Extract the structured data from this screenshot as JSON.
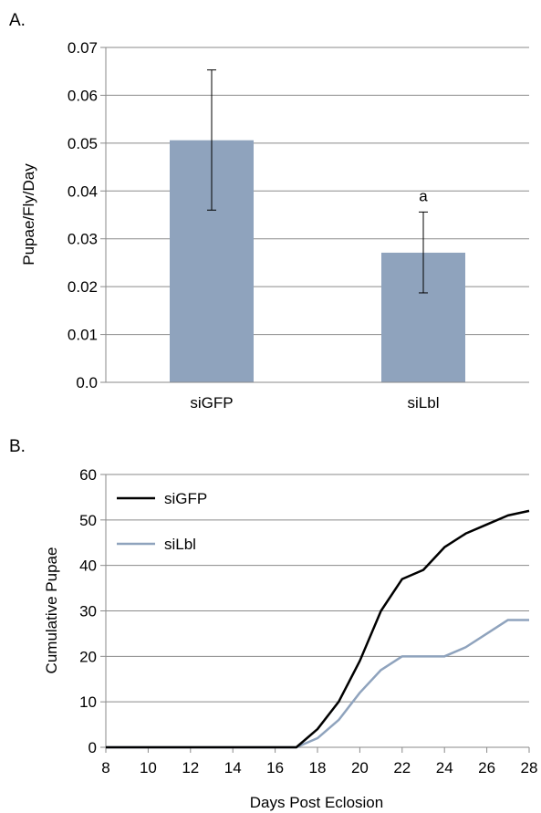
{
  "chart_data": [
    {
      "panel_label": "A.",
      "type": "bar",
      "categories": [
        "siGFP",
        "siLbl"
      ],
      "values": [
        0.0506,
        0.0271
      ],
      "error_low": [
        0.036,
        0.0187
      ],
      "error_high": [
        0.0653,
        0.0356
      ],
      "annotations": [
        "",
        "a"
      ],
      "xlabel": "",
      "ylabel": "Pupae/Fly/Day",
      "ylim": [
        0,
        0.07
      ],
      "yticks": [
        0.0,
        0.01,
        0.02,
        0.03,
        0.04,
        0.05,
        0.06,
        0.07
      ],
      "ytick_labels": [
        "0.0",
        "0.01",
        "0.02",
        "0.03",
        "0.04",
        "0.05",
        "0.06",
        "0.07"
      ],
      "bar_color": "#8fa3bd",
      "grid": true
    },
    {
      "panel_label": "B.",
      "type": "line",
      "x": [
        8,
        9,
        10,
        11,
        12,
        13,
        14,
        15,
        16,
        17,
        18,
        19,
        20,
        21,
        22,
        23,
        24,
        25,
        26,
        27,
        28
      ],
      "series": [
        {
          "name": "siGFP",
          "color": "#000000",
          "values": [
            0,
            0,
            0,
            0,
            0,
            0,
            0,
            0,
            0,
            0,
            4,
            10,
            19,
            30,
            37,
            39,
            44,
            47,
            49,
            51,
            52
          ]
        },
        {
          "name": "siLbl",
          "color": "#8fa3bd",
          "values": [
            0,
            0,
            0,
            0,
            0,
            0,
            0,
            0,
            0,
            0,
            2,
            6,
            12,
            17,
            20,
            20,
            20,
            22,
            25,
            28,
            28
          ]
        }
      ],
      "xlabel": "Days Post Eclosion",
      "ylabel": "Cumulative Pupae",
      "xlim": [
        8,
        28
      ],
      "ylim": [
        0,
        60
      ],
      "xticks": [
        8,
        10,
        12,
        14,
        16,
        18,
        20,
        22,
        24,
        26,
        28
      ],
      "yticks": [
        0,
        10,
        20,
        30,
        40,
        50,
        60
      ],
      "legend": "top-left",
      "grid": true
    }
  ]
}
